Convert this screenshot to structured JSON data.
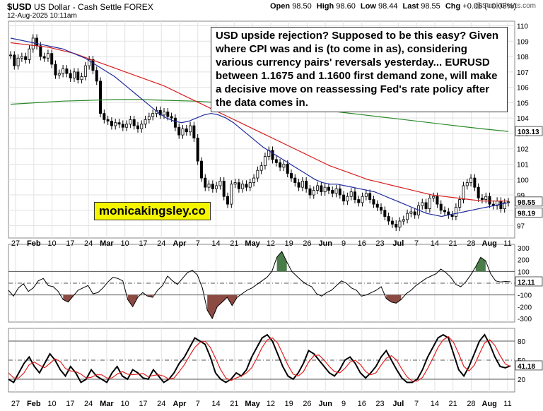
{
  "header": {
    "symbol": "$USD",
    "name": "US Dollar - Cash Settle FOREX",
    "datetime": "12-Aug-2025 10:11am",
    "watermark": "@StockCharts.com",
    "open_label": "Open",
    "open": "98.50",
    "high_label": "High",
    "high": "98.60",
    "low_label": "Low",
    "low": "98.44",
    "last_label": "Last",
    "last": "98.55",
    "chg_label": "Chg",
    "chg": "+0.06 (+0.06%)"
  },
  "annotation": {
    "text": "USD upside rejection? Supposed to be this easy? Given where CPI was and is (to come in as), considering various currency pairs' reversals yesterday... EURUSD between 1.1675 and 1.1600 first demand zone, will make a decisive move on reassessing Fed's rate policy after the data comes in."
  },
  "brand": {
    "text": "monicakingsley.co",
    "color": "#f5f500"
  },
  "colors": {
    "price": "#000000",
    "ma_fast": "#1f2a9e",
    "ma_mid": "#d81e1e",
    "ma_slow": "#2a8a2a",
    "cci_pos": "#4a7c4a",
    "cci_neg": "#8b4a42",
    "stoch_k": "#000000",
    "stoch_d": "#e02020"
  },
  "chart_data": [
    {
      "type": "candlestick",
      "title": "$USD US Dollar - Cash Settle FOREX",
      "x_labels": [
        "27",
        "Feb",
        "10",
        "17",
        "24",
        "Mar",
        "10",
        "17",
        "24",
        "Apr",
        "7",
        "14",
        "21",
        "May",
        "12",
        "19",
        "26",
        "Jun",
        "9",
        "16",
        "23",
        "Jul",
        "7",
        "14",
        "21",
        "28",
        "Aug",
        "11"
      ],
      "y_ticks": [
        97,
        98,
        99,
        100,
        101,
        102,
        103,
        104,
        105,
        106,
        107,
        108,
        109,
        110
      ],
      "ylim": [
        96.2,
        110.3
      ],
      "price_closes": [
        108.1,
        107.4,
        107.9,
        108.0,
        107.8,
        108.5,
        109.2,
        108.7,
        108.0,
        107.9,
        108.2,
        107.5,
        106.8,
        106.9,
        107.2,
        106.9,
        106.6,
        107.0,
        106.5,
        106.7,
        107.4,
        107.8,
        107.1,
        106.4,
        104.3,
        103.9,
        103.8,
        103.5,
        103.7,
        103.6,
        103.4,
        103.6,
        103.9,
        103.5,
        103.3,
        103.6,
        103.9,
        104.1,
        104.3,
        104.5,
        104.2,
        104.4,
        104.1,
        104.0,
        103.4,
        102.9,
        103.3,
        103.1,
        103.5,
        102.7,
        101.2,
        100.1,
        99.5,
        99.7,
        99.4,
        99.6,
        99.9,
        98.9,
        98.4,
        99.7,
        99.8,
        99.4,
        99.7,
        99.5,
        99.8,
        100.1,
        100.6,
        100.9,
        101.5,
        101.9,
        101.3,
        101.1,
        100.8,
        101.0,
        100.4,
        100.1,
        99.8,
        99.5,
        99.9,
        99.4,
        99.0,
        99.3,
        99.6,
        99.2,
        99.5,
        99.3,
        99.1,
        99.4,
        99.0,
        98.6,
        98.9,
        99.2,
        98.7,
        98.5,
        98.9,
        99.1,
        98.7,
        98.4,
        98.2,
        98.0,
        97.6,
        97.3,
        97.1,
        96.9,
        97.3,
        97.4,
        97.8,
        97.9,
        97.7,
        98.3,
        98.5,
        98.1,
        98.8,
        98.9,
        98.4,
        98.0,
        97.9,
        97.7,
        97.6,
        98.2,
        98.7,
        99.6,
        99.8,
        100.1,
        99.5,
        98.8,
        98.7,
        98.9,
        98.4,
        98.3,
        98.6,
        98.1,
        98.5,
        98.55
      ],
      "sma50": [
        109.2,
        109.1,
        109.0,
        108.9,
        108.8,
        108.7,
        108.6,
        108.5,
        108.3,
        108.1,
        107.9,
        107.6,
        107.3,
        107.0,
        106.7,
        106.3,
        105.9,
        105.5,
        105.1,
        104.7,
        104.3,
        104.0,
        103.8,
        103.7,
        103.8,
        104.0,
        104.2,
        104.3,
        104.2,
        104.0,
        103.7,
        103.3,
        102.9,
        102.5,
        102.1,
        101.8,
        101.5,
        101.2,
        100.9,
        100.6,
        100.3,
        100.0,
        99.8,
        99.7,
        99.7,
        99.6,
        99.5,
        99.4,
        99.3,
        99.2,
        99.0,
        98.8,
        98.6,
        98.4,
        98.2,
        98.0,
        97.8,
        97.7,
        97.6,
        97.7,
        97.8,
        97.9,
        98.0,
        98.1,
        98.2,
        98.3,
        98.4,
        98.5
      ],
      "sma100": [
        108.9,
        108.8,
        108.7,
        108.6,
        108.4,
        108.2,
        107.9,
        107.6,
        107.3,
        107.0,
        106.7,
        106.4,
        106.1,
        105.7,
        105.3,
        104.9,
        104.5,
        104.1,
        103.7,
        103.3,
        102.9,
        102.5,
        102.1,
        101.7,
        101.3,
        100.9,
        100.6,
        100.3,
        100.0,
        99.8,
        99.6,
        99.4,
        99.2,
        99.0,
        98.9,
        98.8,
        98.7,
        98.6,
        98.6,
        98.6
      ],
      "sma200": [
        104.9,
        105.0,
        105.1,
        105.15,
        105.2,
        105.2,
        105.15,
        105.1,
        105.0,
        104.9,
        104.8,
        104.6,
        104.5,
        104.3,
        104.1,
        103.9,
        103.7,
        103.5,
        103.3,
        103.13
      ],
      "price_label": "98.55",
      "ma_labels": [
        "103.13",
        "98.19"
      ]
    },
    {
      "type": "line",
      "name": "CCI",
      "y_ticks": [
        -300,
        -200,
        -100,
        0,
        100,
        200,
        300
      ],
      "ylim": [
        -330,
        330
      ],
      "hlines": [
        100,
        -100
      ],
      "value_label": "12.11",
      "values": [
        -60,
        -110,
        -40,
        -5,
        -70,
        -40,
        20,
        40,
        -20,
        -30,
        -70,
        -140,
        -160,
        -110,
        -60,
        -40,
        -20,
        -90,
        -80,
        -40,
        10,
        50,
        40,
        20,
        -140,
        -200,
        -120,
        -80,
        -110,
        -120,
        -60,
        -20,
        60,
        20,
        -10,
        40,
        90,
        110,
        70,
        -40,
        -230,
        -300,
        -200,
        -160,
        -120,
        -190,
        -120,
        -90,
        -60,
        -40,
        -10,
        20,
        50,
        100,
        220,
        270,
        180,
        100,
        60,
        20,
        -10,
        -30,
        -90,
        -110,
        -80,
        -60,
        -20,
        20,
        0,
        -40,
        -60,
        -110,
        -100,
        -80,
        -60,
        -30,
        -130,
        -160,
        -170,
        -140,
        -90,
        -60,
        -20,
        10,
        40,
        60,
        80,
        120,
        90,
        50,
        -10,
        -30,
        10,
        70,
        140,
        220,
        190,
        80,
        20,
        10,
        15,
        12
      ]
    },
    {
      "type": "line",
      "name": "Stochastic",
      "y_ticks": [
        20,
        50,
        80
      ],
      "ylim": [
        0,
        100
      ],
      "hlines": [
        80,
        50,
        20
      ],
      "value_label": "41.18",
      "series": [
        {
          "name": "%K",
          "values": [
            20,
            15,
            30,
            45,
            55,
            40,
            30,
            45,
            60,
            50,
            35,
            25,
            40,
            30,
            15,
            20,
            35,
            25,
            20,
            15,
            30,
            40,
            25,
            20,
            35,
            30,
            22,
            20,
            35,
            25,
            15,
            20,
            30,
            45,
            55,
            70,
            85,
            80,
            75,
            55,
            30,
            20,
            15,
            20,
            30,
            25,
            35,
            55,
            70,
            85,
            90,
            80,
            60,
            40,
            25,
            20,
            30,
            45,
            65,
            60,
            50,
            40,
            30,
            25,
            35,
            50,
            55,
            45,
            30,
            22,
            30,
            40,
            55,
            65,
            50,
            35,
            22,
            15,
            15,
            20,
            35,
            55,
            70,
            85,
            90,
            85,
            60,
            35,
            25,
            40,
            60,
            80,
            90,
            75,
            55,
            40,
            38,
            41
          ]
        },
        {
          "name": "%D",
          "values": [
            30,
            22,
            22,
            30,
            43,
            47,
            42,
            38,
            45,
            52,
            48,
            37,
            33,
            32,
            28,
            22,
            23,
            27,
            27,
            22,
            22,
            28,
            32,
            28,
            27,
            28,
            29,
            24,
            26,
            27,
            25,
            20,
            22,
            32,
            43,
            57,
            70,
            78,
            80,
            70,
            53,
            35,
            22,
            18,
            22,
            25,
            30,
            38,
            53,
            70,
            82,
            85,
            77,
            60,
            42,
            28,
            25,
            32,
            47,
            57,
            58,
            50,
            40,
            32,
            30,
            37,
            47,
            50,
            43,
            32,
            27,
            30,
            42,
            53,
            57,
            50,
            36,
            24,
            17,
            17,
            23,
            37,
            53,
            70,
            82,
            87,
            78,
            60,
            40,
            33,
            42,
            60,
            77,
            82,
            73,
            57,
            44,
            40
          ]
        }
      ]
    }
  ]
}
